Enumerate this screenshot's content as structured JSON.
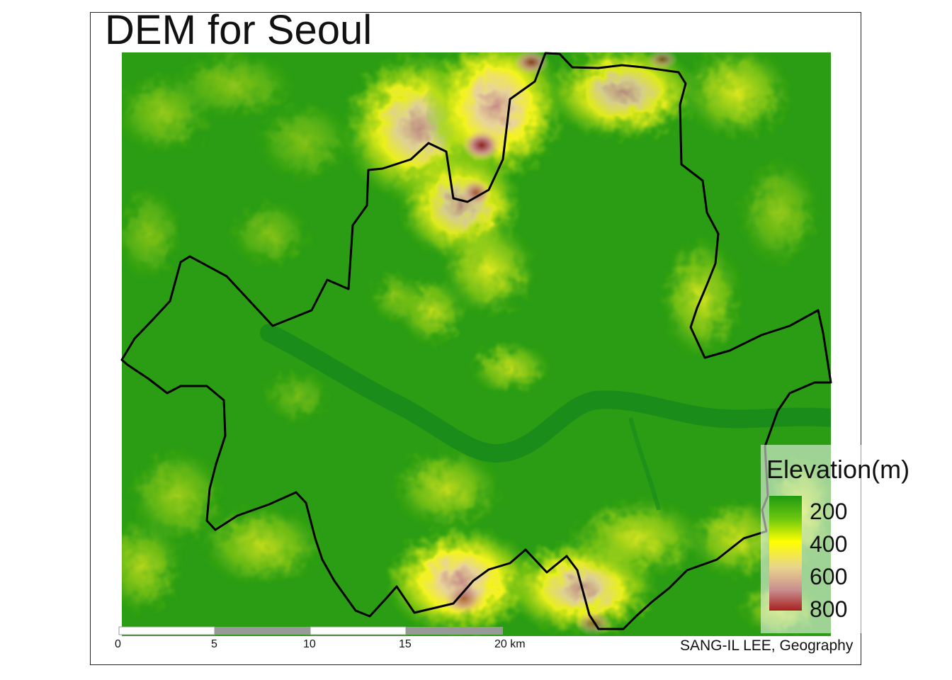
{
  "map": {
    "title": "DEM for Seoul",
    "legend": {
      "title": "Elevation(m)",
      "labels": [
        "200",
        "400",
        "600",
        "800"
      ],
      "colors": [
        "#1f9a12",
        "#6cc70f",
        "#ffff00",
        "#e9d58c",
        "#c98f8f",
        "#a82020"
      ]
    },
    "scale_bar": {
      "labels": [
        "0",
        "5",
        "10",
        "15",
        "20 km"
      ]
    },
    "credit": "SANG-IL LEE, Geography",
    "colors": {
      "lowland": "#1f9a12",
      "river": "#178a1a",
      "boundary": "#000000"
    }
  }
}
